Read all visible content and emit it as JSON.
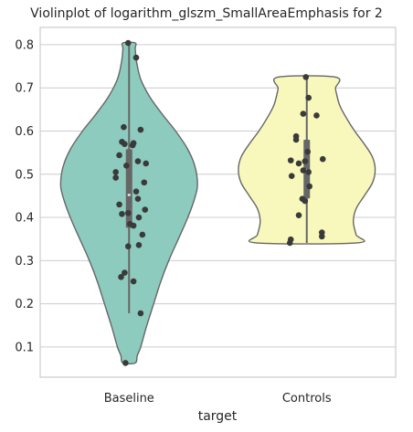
{
  "chart_data": {
    "type": "violin",
    "title": "Violinplot of logarithm_glszm_SmallAreaEmphasis for 2",
    "xlabel": "target",
    "ylabel": "",
    "ylim": [
      0.03,
      0.84
    ],
    "yticks": [
      0.1,
      0.2,
      0.3,
      0.4,
      0.5,
      0.6,
      0.7,
      0.8
    ],
    "ytick_labels": [
      "0.1",
      "0.2",
      "0.3",
      "0.4",
      "0.5",
      "0.6",
      "0.7",
      "0.8"
    ],
    "grid": true,
    "categories": [
      "Baseline",
      "Controls"
    ],
    "series": [
      {
        "category": "Baseline",
        "color": "#8dcbbf",
        "min": 0.063,
        "max": 0.804,
        "box": {
          "q1": 0.376,
          "median": 0.452,
          "q3": 0.558,
          "whisker_low": 0.178,
          "whisker_high": 0.804
        },
        "density": [
          [
            0.063,
            0.09
          ],
          [
            0.08,
            0.12
          ],
          [
            0.1,
            0.17
          ],
          [
            0.15,
            0.26
          ],
          [
            0.2,
            0.36
          ],
          [
            0.25,
            0.46
          ],
          [
            0.3,
            0.58
          ],
          [
            0.35,
            0.72
          ],
          [
            0.4,
            0.86
          ],
          [
            0.45,
            0.97
          ],
          [
            0.48,
            1.0
          ],
          [
            0.52,
            0.96
          ],
          [
            0.56,
            0.85
          ],
          [
            0.6,
            0.68
          ],
          [
            0.64,
            0.48
          ],
          [
            0.68,
            0.3
          ],
          [
            0.72,
            0.17
          ],
          [
            0.76,
            0.11
          ],
          [
            0.79,
            0.09
          ],
          [
            0.804,
            0.09
          ]
        ],
        "points": [
          {
            "y": 0.804,
            "jitter": -0.01
          },
          {
            "y": 0.77,
            "jitter": 0.08
          },
          {
            "y": 0.609,
            "jitter": -0.06
          },
          {
            "y": 0.603,
            "jitter": 0.13
          },
          {
            "y": 0.575,
            "jitter": -0.08
          },
          {
            "y": 0.572,
            "jitter": 0.05
          },
          {
            "y": 0.57,
            "jitter": -0.05
          },
          {
            "y": 0.567,
            "jitter": 0.04
          },
          {
            "y": 0.544,
            "jitter": -0.11
          },
          {
            "y": 0.53,
            "jitter": 0.1
          },
          {
            "y": 0.525,
            "jitter": 0.19
          },
          {
            "y": 0.52,
            "jitter": -0.03
          },
          {
            "y": 0.505,
            "jitter": -0.15
          },
          {
            "y": 0.492,
            "jitter": -0.15
          },
          {
            "y": 0.481,
            "jitter": 0.17
          },
          {
            "y": 0.46,
            "jitter": 0.08
          },
          {
            "y": 0.443,
            "jitter": 0.1
          },
          {
            "y": 0.43,
            "jitter": -0.11
          },
          {
            "y": 0.418,
            "jitter": 0.18
          },
          {
            "y": 0.41,
            "jitter": -0.01
          },
          {
            "y": 0.408,
            "jitter": -0.08
          },
          {
            "y": 0.4,
            "jitter": 0.11
          },
          {
            "y": 0.385,
            "jitter": 0.01
          },
          {
            "y": 0.381,
            "jitter": 0.05
          },
          {
            "y": 0.36,
            "jitter": 0.15
          },
          {
            "y": 0.336,
            "jitter": 0.11
          },
          {
            "y": 0.333,
            "jitter": -0.01
          },
          {
            "y": 0.272,
            "jitter": -0.05
          },
          {
            "y": 0.262,
            "jitter": -0.09
          },
          {
            "y": 0.252,
            "jitter": 0.05
          },
          {
            "y": 0.178,
            "jitter": 0.13
          },
          {
            "y": 0.063,
            "jitter": -0.04
          }
        ]
      },
      {
        "category": "Controls",
        "color": "#f8f8bc",
        "min": 0.341,
        "max": 0.725,
        "box": {
          "q1": 0.444,
          "median": 0.509,
          "q3": 0.58,
          "whisker_low": 0.341,
          "whisker_high": 0.725
        },
        "density": [
          [
            0.341,
            0.74
          ],
          [
            0.36,
            0.72
          ],
          [
            0.39,
            0.68
          ],
          [
            0.42,
            0.72
          ],
          [
            0.45,
            0.84
          ],
          [
            0.48,
            0.96
          ],
          [
            0.51,
            1.0
          ],
          [
            0.54,
            0.96
          ],
          [
            0.57,
            0.84
          ],
          [
            0.6,
            0.7
          ],
          [
            0.63,
            0.58
          ],
          [
            0.66,
            0.48
          ],
          [
            0.69,
            0.43
          ],
          [
            0.7,
            0.42
          ],
          [
            0.725,
            0.42
          ]
        ],
        "points": [
          {
            "y": 0.725,
            "jitter": -0.01
          },
          {
            "y": 0.677,
            "jitter": 0.02
          },
          {
            "y": 0.64,
            "jitter": -0.04
          },
          {
            "y": 0.636,
            "jitter": 0.11
          },
          {
            "y": 0.588,
            "jitter": -0.12
          },
          {
            "y": 0.58,
            "jitter": -0.12
          },
          {
            "y": 0.552,
            "jitter": 0.01
          },
          {
            "y": 0.535,
            "jitter": 0.18
          },
          {
            "y": 0.532,
            "jitter": -0.18
          },
          {
            "y": 0.53,
            "jitter": -0.02
          },
          {
            "y": 0.525,
            "jitter": -0.09
          },
          {
            "y": 0.509,
            "jitter": -0.04
          },
          {
            "y": 0.505,
            "jitter": 0.02
          },
          {
            "y": 0.496,
            "jitter": -0.17
          },
          {
            "y": 0.472,
            "jitter": 0.03
          },
          {
            "y": 0.443,
            "jitter": -0.05
          },
          {
            "y": 0.438,
            "jitter": -0.02
          },
          {
            "y": 0.405,
            "jitter": -0.09
          },
          {
            "y": 0.365,
            "jitter": 0.17
          },
          {
            "y": 0.356,
            "jitter": 0.17
          },
          {
            "y": 0.349,
            "jitter": -0.18
          },
          {
            "y": 0.341,
            "jitter": -0.19
          }
        ]
      }
    ]
  }
}
